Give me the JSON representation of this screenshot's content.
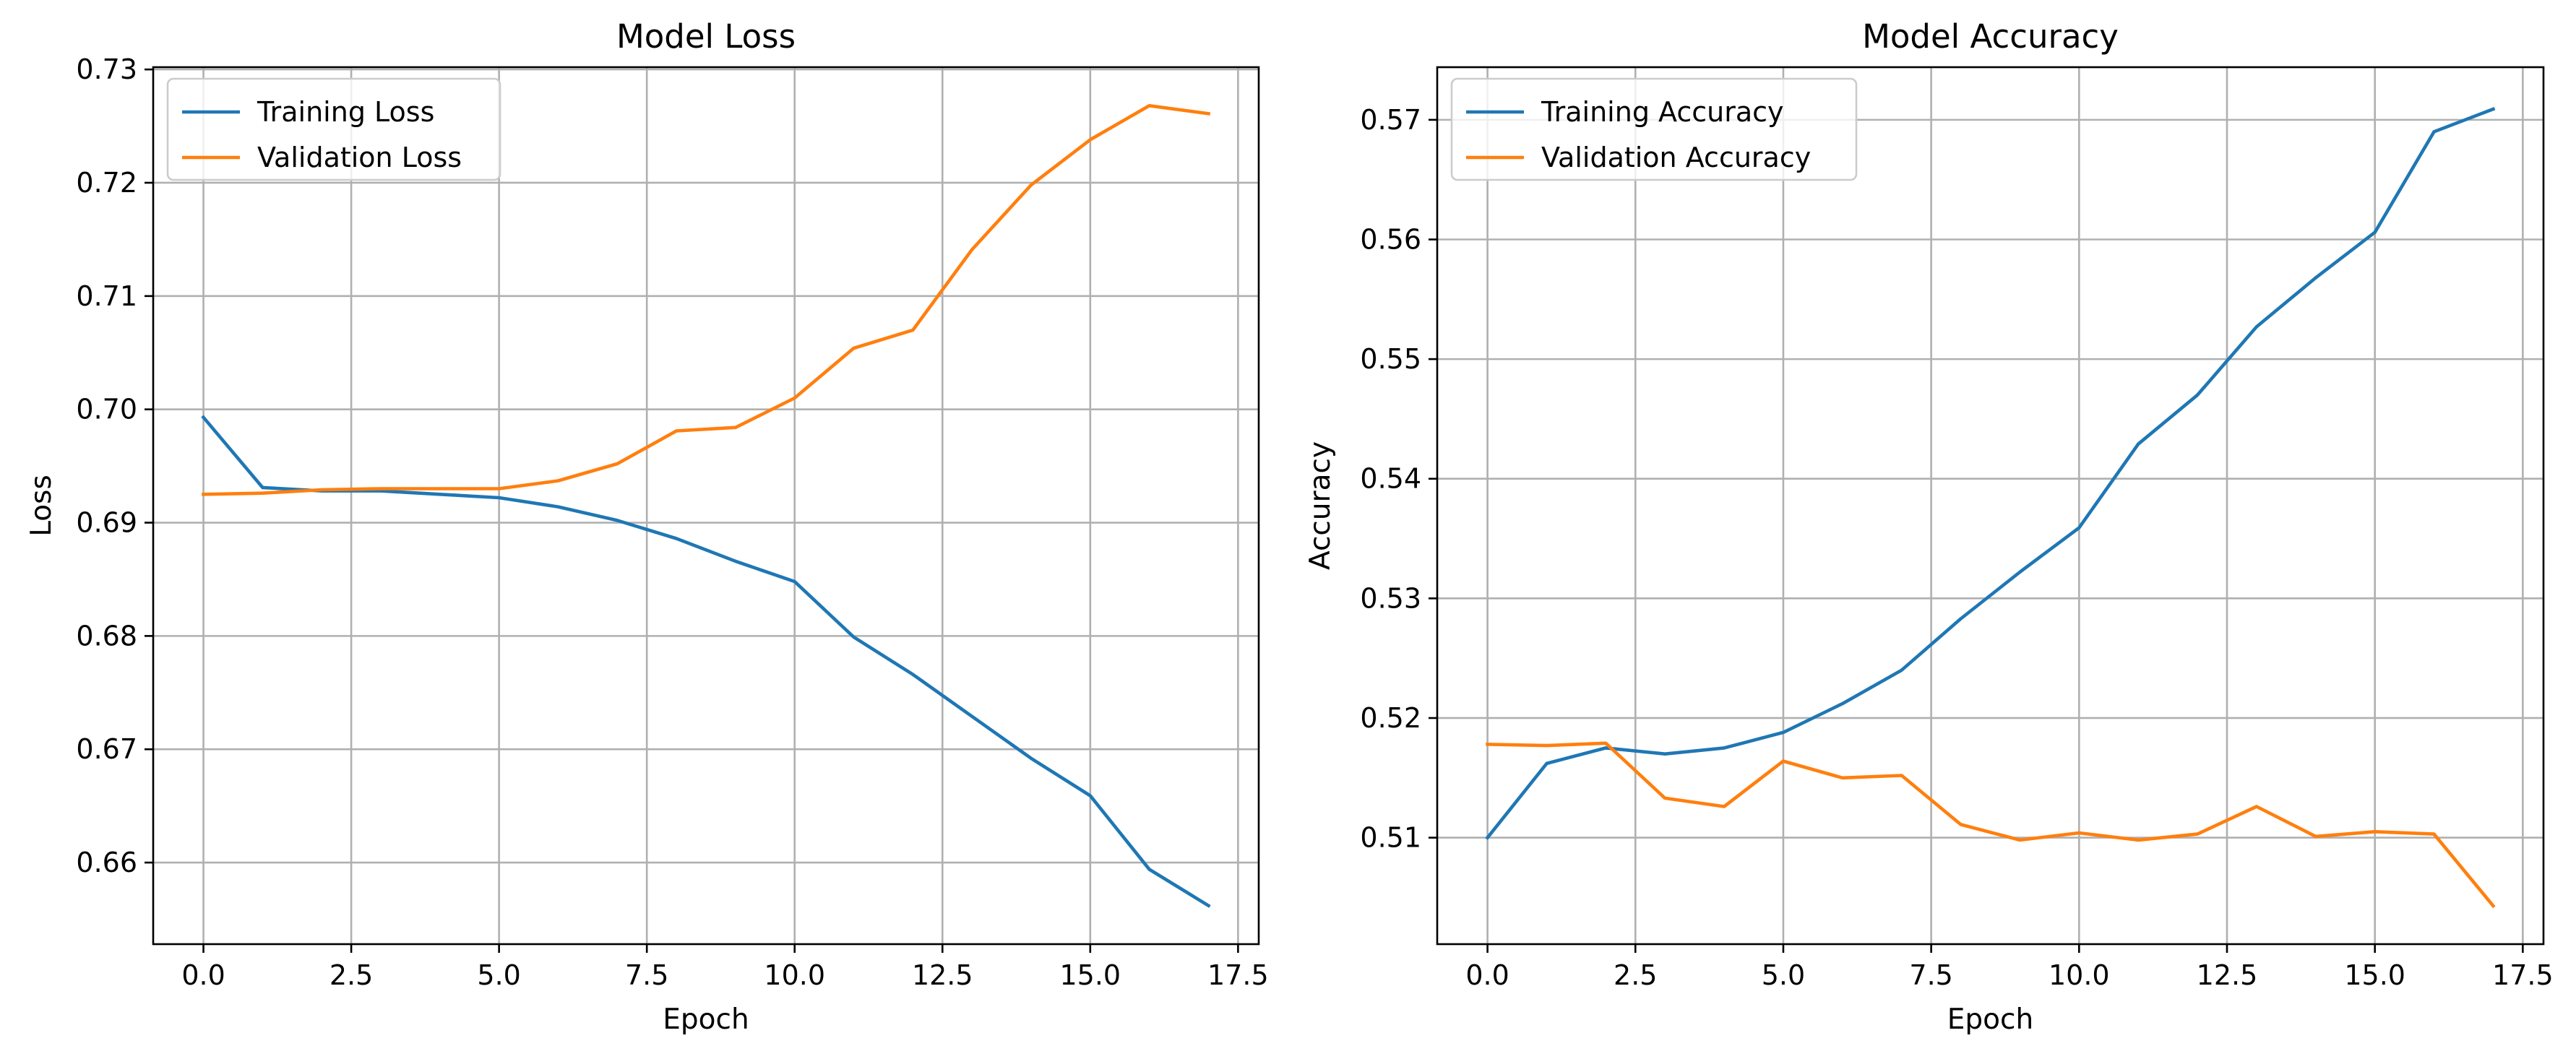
{
  "colors": {
    "training": "#1f77b4",
    "validation": "#ff7f0e",
    "grid": "#b0b0b0",
    "axis": "#000000"
  },
  "chart_data": [
    {
      "type": "line",
      "title": "Model Loss",
      "xlabel": "Epoch",
      "ylabel": "Loss",
      "xlim": [
        -0.85,
        17.85
      ],
      "ylim": [
        0.6528,
        0.7302
      ],
      "xticks": [
        0,
        2.5,
        5,
        7.5,
        10,
        12.5,
        15,
        17.5
      ],
      "xtick_labels": [
        "0.0",
        "2.5",
        "5.0",
        "7.5",
        "10.0",
        "12.5",
        "15.0",
        "17.5"
      ],
      "yticks": [
        0.66,
        0.67,
        0.68,
        0.69,
        0.7,
        0.71,
        0.72,
        0.73
      ],
      "ytick_labels": [
        "0.66",
        "0.67",
        "0.68",
        "0.69",
        "0.70",
        "0.71",
        "0.72",
        "0.73"
      ],
      "grid": true,
      "legend_position": "upper-left",
      "x": [
        0,
        1,
        2,
        3,
        4,
        5,
        6,
        7,
        8,
        9,
        10,
        11,
        12,
        13,
        14,
        15,
        16,
        17
      ],
      "series": [
        {
          "name": "Training Loss",
          "color_key": "training",
          "values": [
            0.6993,
            0.6931,
            0.6928,
            0.6928,
            0.6925,
            0.6922,
            0.6914,
            0.6902,
            0.6886,
            0.6866,
            0.6848,
            0.6799,
            0.6766,
            0.6729,
            0.6692,
            0.6659,
            0.6594,
            0.6562
          ]
        },
        {
          "name": "Validation Loss",
          "color_key": "validation",
          "values": [
            0.6925,
            0.6926,
            0.6929,
            0.693,
            0.693,
            0.693,
            0.6937,
            0.6952,
            0.6981,
            0.6984,
            0.701,
            0.7054,
            0.707,
            0.7141,
            0.7198,
            0.7238,
            0.7268,
            0.7261
          ]
        }
      ]
    },
    {
      "type": "line",
      "title": "Model Accuracy",
      "xlabel": "Epoch",
      "ylabel": "Accuracy",
      "xlim": [
        -0.85,
        17.85
      ],
      "ylim": [
        0.5011,
        0.5744
      ],
      "xticks": [
        0,
        2.5,
        5,
        7.5,
        10,
        12.5,
        15,
        17.5
      ],
      "xtick_labels": [
        "0.0",
        "2.5",
        "5.0",
        "7.5",
        "10.0",
        "12.5",
        "15.0",
        "17.5"
      ],
      "yticks": [
        0.51,
        0.52,
        0.53,
        0.54,
        0.55,
        0.56,
        0.57
      ],
      "ytick_labels": [
        "0.51",
        "0.52",
        "0.53",
        "0.54",
        "0.55",
        "0.56",
        "0.57"
      ],
      "grid": true,
      "legend_position": "upper-left",
      "x": [
        0,
        1,
        2,
        3,
        4,
        5,
        6,
        7,
        8,
        9,
        10,
        11,
        12,
        13,
        14,
        15,
        16,
        17
      ],
      "series": [
        {
          "name": "Training Accuracy",
          "color_key": "training",
          "values": [
            0.51,
            0.5162,
            0.5175,
            0.517,
            0.5175,
            0.5188,
            0.5212,
            0.524,
            0.5283,
            0.5322,
            0.5359,
            0.5429,
            0.547,
            0.5527,
            0.5568,
            0.5606,
            0.569,
            0.5709
          ]
        },
        {
          "name": "Validation Accuracy",
          "color_key": "validation",
          "values": [
            0.5178,
            0.5177,
            0.5179,
            0.5133,
            0.5126,
            0.5164,
            0.515,
            0.5152,
            0.5111,
            0.5098,
            0.5104,
            0.5098,
            0.5103,
            0.5126,
            0.5101,
            0.5105,
            0.5103,
            0.5043
          ]
        }
      ]
    }
  ]
}
